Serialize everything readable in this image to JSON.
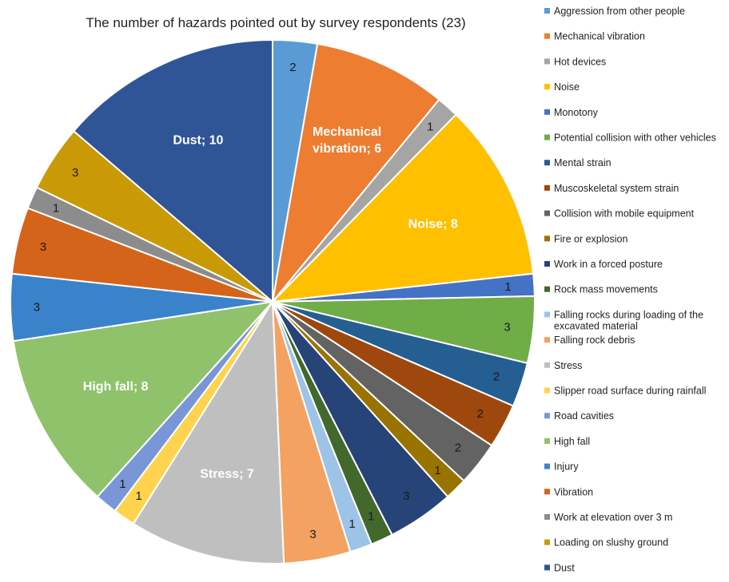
{
  "chart_data": {
    "type": "pie",
    "title": "The number of hazards pointed out by survey respondents  (23)",
    "legend_position": "right",
    "start_angle_deg": 0,
    "direction": "clockwise",
    "slices": [
      {
        "name": "Aggression from other people",
        "value": 2,
        "color": "#5B9BD5",
        "label": "2",
        "label_color": "#1a1a1a"
      },
      {
        "name": "Mechanical vibration",
        "value": 6,
        "color": "#ED7D31",
        "label": "Mechanical vibration; 6",
        "label_lines": [
          "Mechanical",
          "vibration; 6"
        ],
        "label_color": "#ffffff",
        "big": true
      },
      {
        "name": "Hot devices",
        "value": 1,
        "color": "#A5A5A5",
        "label": "1",
        "label_color": "#1a1a1a"
      },
      {
        "name": "Noise",
        "value": 8,
        "color": "#FFC000",
        "label": "Noise; 8",
        "label_color": "#ffffff",
        "big": true
      },
      {
        "name": "Monotony",
        "value": 1,
        "color": "#4472C4",
        "label": "1",
        "label_color": "#1a1a1a"
      },
      {
        "name": "Potential collision with other vehicles",
        "value": 3,
        "color": "#70AD47",
        "label": "3",
        "label_color": "#1a1a1a"
      },
      {
        "name": "Mental strain",
        "value": 2,
        "color": "#255E91",
        "label": "2",
        "label_color": "#1a1a1a"
      },
      {
        "name": "Muscoskeletal system strain",
        "value": 2,
        "color": "#9E480E",
        "label": "2",
        "label_color": "#1a1a1a"
      },
      {
        "name": "Collision with mobile equipment",
        "value": 2,
        "color": "#636363",
        "label": "2",
        "label_color": "#1a1a1a"
      },
      {
        "name": "Fire or explosion",
        "value": 1,
        "color": "#997300",
        "label": "1",
        "label_color": "#1a1a1a"
      },
      {
        "name": "Work in a forced posture",
        "value": 3,
        "color": "#264478",
        "label": "3",
        "label_color": "#1a1a1a"
      },
      {
        "name": "Rock mass movements",
        "value": 1,
        "color": "#43682B",
        "label": "1",
        "label_color": "#1a1a1a"
      },
      {
        "name": "Falling rocks during loading of the excavated material",
        "value": 1,
        "color": "#9DC3E6",
        "label": "1",
        "label_color": "#1a1a1a"
      },
      {
        "name": "Falling rock debris",
        "value": 3,
        "color": "#F4A261",
        "label": "3",
        "label_color": "#1a1a1a"
      },
      {
        "name": "Stress",
        "value": 7,
        "color": "#BFBFBF",
        "label": "Stress; 7",
        "label_color": "#ffffff",
        "big": true
      },
      {
        "name": "Slipper road surface during rainfall",
        "value": 1,
        "color": "#FFD34D",
        "label": "1",
        "label_color": "#1a1a1a"
      },
      {
        "name": "Road cavities",
        "value": 1,
        "color": "#7996D6",
        "label": "1",
        "label_color": "#1a1a1a"
      },
      {
        "name": "High fall",
        "value": 8,
        "color": "#8FC26A",
        "label": "High fall; 8",
        "label_color": "#ffffff",
        "big": true
      },
      {
        "name": "Injury",
        "value": 3,
        "color": "#3A83CB",
        "label": "3",
        "label_color": "#1a1a1a"
      },
      {
        "name": "Vibration",
        "value": 3,
        "color": "#D4641A",
        "label": "3",
        "label_color": "#1a1a1a"
      },
      {
        "name": "Work at elevation over 3 m",
        "value": 1,
        "color": "#8C8C8C",
        "label": "1",
        "label_color": "#1a1a1a"
      },
      {
        "name": "Loading on slushy ground",
        "value": 3,
        "color": "#C99A06",
        "label": "3",
        "label_color": "#1a1a1a"
      },
      {
        "name": "Dust",
        "value": 10,
        "color": "#2F5597",
        "label": "Dust; 10",
        "label_color": "#ffffff",
        "big": true
      }
    ],
    "legend": [
      {
        "label": "Aggression from other people",
        "color": "#5B9BD5"
      },
      {
        "label": "Mechanical vibration",
        "color": "#ED7D31"
      },
      {
        "label": "Hot devices",
        "color": "#A5A5A5"
      },
      {
        "label": "Noise",
        "color": "#FFC000"
      },
      {
        "label": "Monotony",
        "color": "#4472C4"
      },
      {
        "label": "Potential collision with other vehicles",
        "color": "#70AD47"
      },
      {
        "label": "Mental strain",
        "color": "#255E91"
      },
      {
        "label": "Muscoskeletal system strain",
        "color": "#9E480E"
      },
      {
        "label": "Collision with mobile equipment",
        "color": "#636363"
      },
      {
        "label": "Fire or explosion",
        "color": "#997300"
      },
      {
        "label": "Work in a forced posture",
        "color": "#264478"
      },
      {
        "label": "Rock mass movements",
        "color": "#43682B"
      },
      {
        "label": "Falling rocks during loading of the excavated material",
        "lines": [
          "Falling rocks during loading of the",
          "excavated material"
        ],
        "color": "#9DC3E6"
      },
      {
        "label": "Falling rock debris",
        "color": "#F4A261"
      },
      {
        "label": "Stress",
        "color": "#BFBFBF"
      },
      {
        "label": "Slipper road surface during rainfall",
        "color": "#FFD34D"
      },
      {
        "label": "Road cavities",
        "color": "#7996D6"
      },
      {
        "label": "High fall",
        "color": "#8FC26A"
      },
      {
        "label": "Injury",
        "color": "#3A83CB"
      },
      {
        "label": "Vibration",
        "color": "#D4641A"
      },
      {
        "label": "Work at elevation over 3 m",
        "color": "#8C8C8C"
      },
      {
        "label": "Loading on slushy ground",
        "color": "#C99A06"
      },
      {
        "label": "Dust",
        "color": "#2F5597"
      }
    ]
  }
}
